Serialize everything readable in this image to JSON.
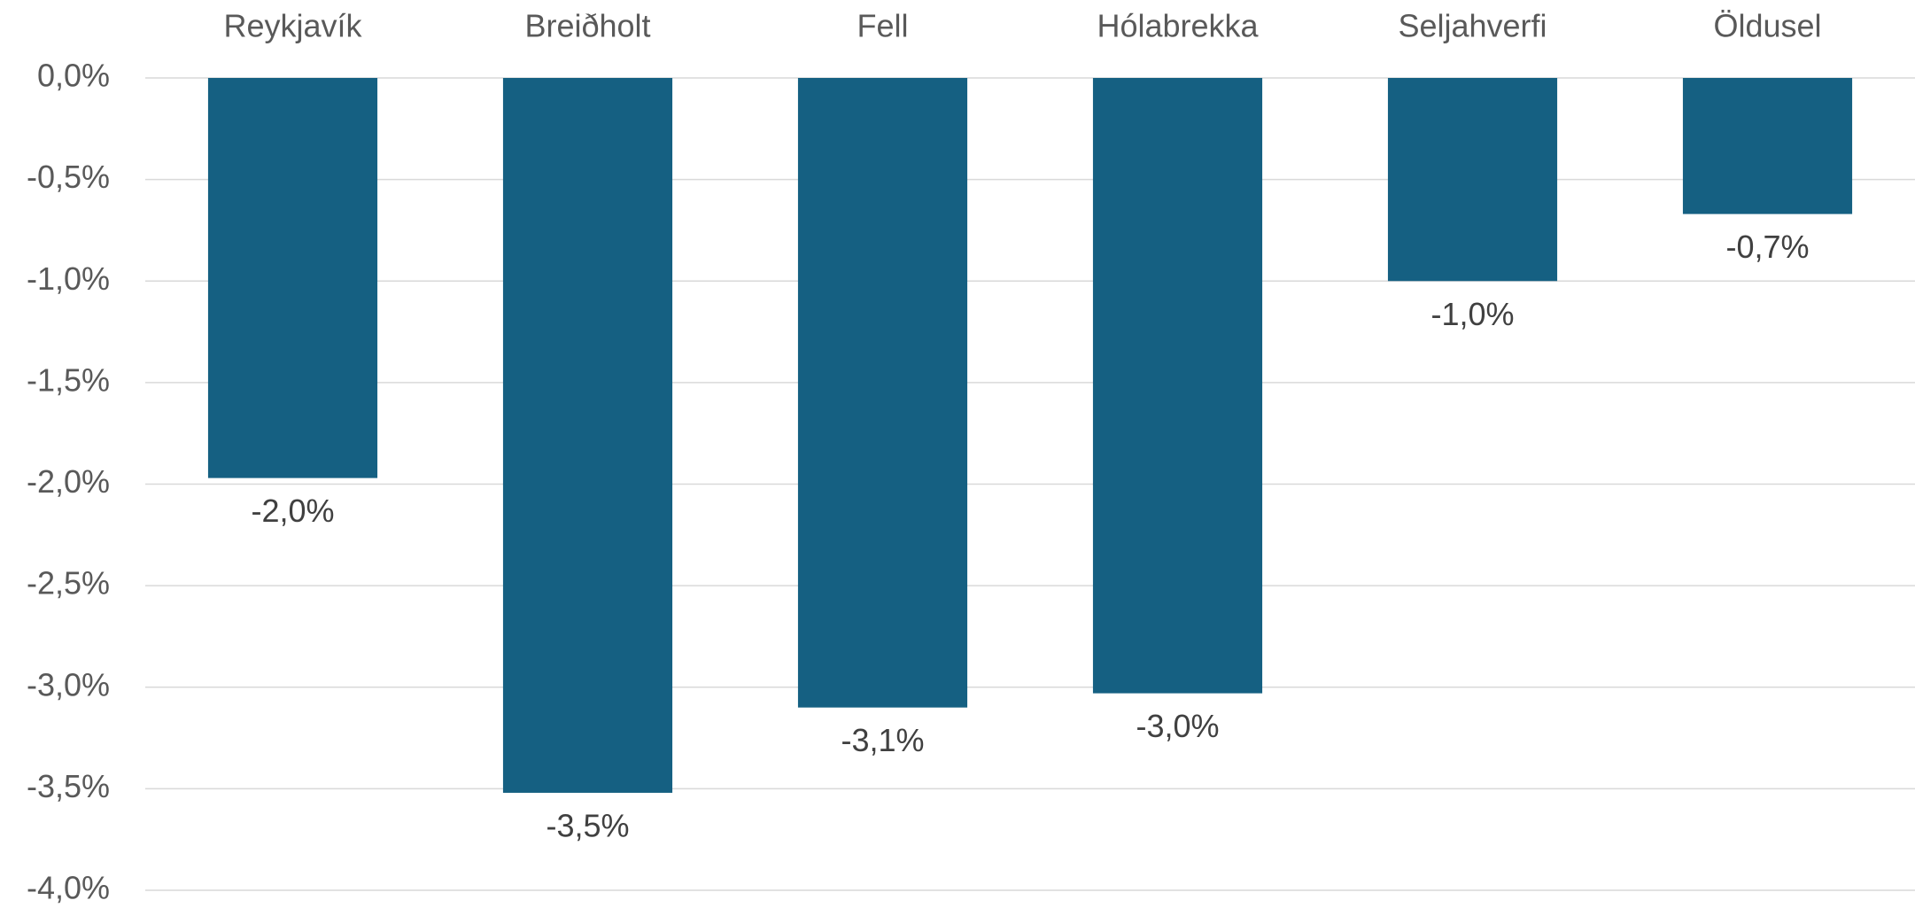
{
  "chart_data": {
    "type": "bar",
    "categories": [
      "Reykjavík",
      "Breiðholt",
      "Fell",
      "Hólabrekka",
      "Seljahverfi",
      "Öldusel"
    ],
    "values": [
      -1.97,
      -3.52,
      -3.1,
      -3.03,
      -1.0,
      -0.67
    ],
    "value_labels": [
      "-2,0%",
      "-3,5%",
      "-3,1%",
      "-3,0%",
      "-1,0%",
      "-0,7%"
    ],
    "color": "#156082",
    "ylim": [
      -4,
      0
    ],
    "yticks": [
      {
        "value": 0,
        "label": "0,0%"
      },
      {
        "value": -0.5,
        "label": "-0,5%"
      },
      {
        "value": -1,
        "label": "-1,0%"
      },
      {
        "value": -1.5,
        "label": "-1,5%"
      },
      {
        "value": -2,
        "label": "-2,0%"
      },
      {
        "value": -2.5,
        "label": "-2,5%"
      },
      {
        "value": -3,
        "label": "-3,0%"
      },
      {
        "value": -3.5,
        "label": "-3,5%"
      },
      {
        "value": -4,
        "label": "-4,0%"
      }
    ],
    "grid": true
  }
}
